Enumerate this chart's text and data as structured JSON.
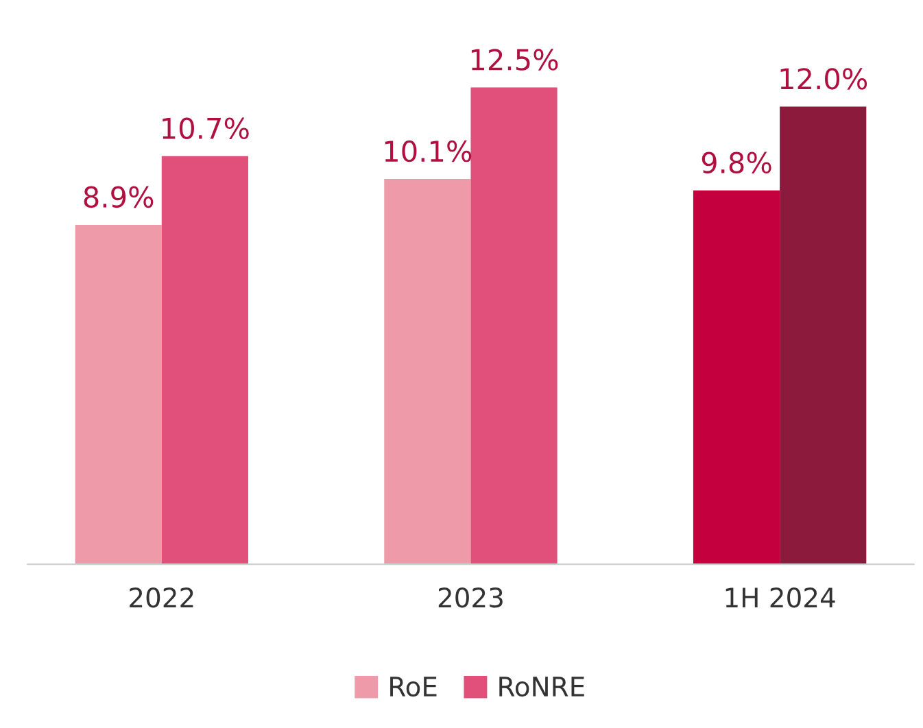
{
  "chart_data": {
    "type": "bar",
    "categories": [
      "2022",
      "2023",
      "1H 2024"
    ],
    "series": [
      {
        "name": "RoE",
        "color": "#ee9aa8",
        "colors": [
          "#ee9aa8",
          "#ee9aa8",
          "#c4003f"
        ],
        "values": [
          8.9,
          10.1,
          9.8
        ],
        "value_labels": [
          "8.9%",
          "10.1%",
          "9.8%"
        ]
      },
      {
        "name": "RoNRE",
        "color": "#e0507a",
        "colors": [
          "#e0507a",
          "#e0507a",
          "#8b1a3c"
        ],
        "values": [
          10.7,
          12.5,
          12.0
        ],
        "value_labels": [
          "10.7%",
          "12.5%",
          "12.0%"
        ]
      }
    ],
    "grid": false,
    "legend": "bottom",
    "tick_labels": "x"
  }
}
